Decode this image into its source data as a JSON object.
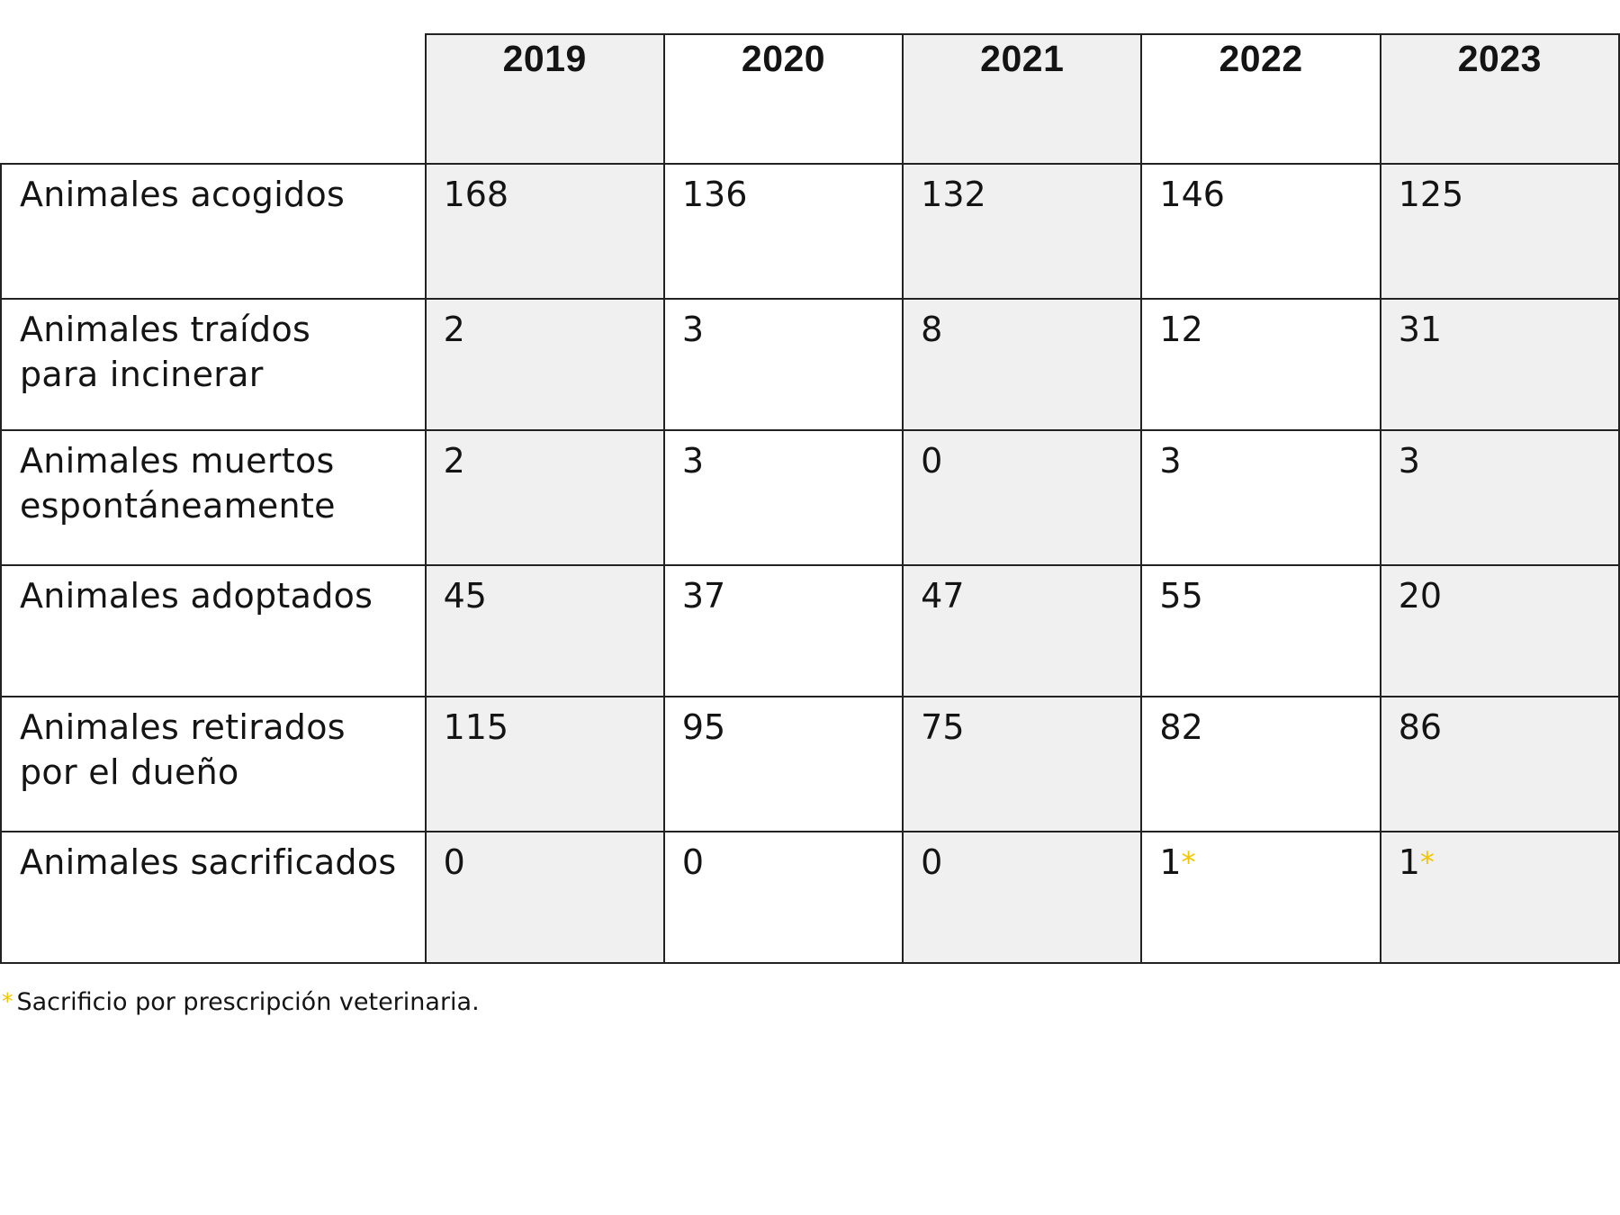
{
  "table": {
    "years": [
      "2019",
      "2020",
      "2021",
      "2022",
      "2023"
    ],
    "rows": [
      {
        "label_lines": [
          "Animales acogidos"
        ],
        "values": [
          "168",
          "136",
          "132",
          "146",
          "125"
        ]
      },
      {
        "label_lines": [
          "Animales traídos",
          "para incinerar"
        ],
        "values": [
          "2",
          "3",
          "8",
          "12",
          "31"
        ]
      },
      {
        "label_lines": [
          "Animales muertos",
          "espontáneamente"
        ],
        "values": [
          "2",
          "3",
          "0",
          "3",
          "3"
        ]
      },
      {
        "label_lines": [
          "Animales adoptados"
        ],
        "values": [
          "45",
          "37",
          "47",
          "55",
          "20"
        ]
      },
      {
        "label_lines": [
          "Animales retirados",
          "por el dueño"
        ],
        "values": [
          "115",
          "95",
          "75",
          "82",
          "86"
        ]
      },
      {
        "label_lines": [
          "Animales sacrificados"
        ],
        "values": [
          "0",
          "0",
          "0",
          "1",
          "1"
        ],
        "marks": [
          "",
          "",
          "",
          "*",
          "*"
        ]
      }
    ]
  },
  "footnote": {
    "mark": "*",
    "text": "Sacrificio por prescripción veterinaria."
  },
  "colors": {
    "asterisk": "#f2c500",
    "shaded_column": "#f0f0f0",
    "border": "#222222"
  }
}
